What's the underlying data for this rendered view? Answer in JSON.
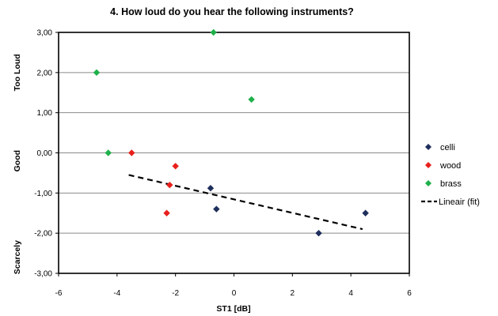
{
  "chart_data": {
    "type": "scatter",
    "title": "4. How loud do you hear the following instruments?",
    "xlabel": "ST1 [dB]",
    "ylabel_bands": [
      "Too  Loud",
      "Good",
      "Scarcely"
    ],
    "xlim": [
      -6,
      6
    ],
    "ylim": [
      -3,
      3
    ],
    "xticks": [
      "-6",
      "-4",
      "-2",
      "0",
      "2",
      "4",
      "6"
    ],
    "yticks": [
      "3,00",
      "2,00",
      "1,00",
      "0,00",
      "-1,00",
      "-2,00",
      "-3,00"
    ],
    "grid": "horizontal",
    "legend_position": "right",
    "series": [
      {
        "name": "celli",
        "color": "#1f2f5c",
        "marker": "diamond",
        "points": [
          [
            -0.8,
            -0.88
          ],
          [
            -0.6,
            -1.4
          ],
          [
            2.9,
            -2.0
          ],
          [
            4.5,
            -1.5
          ]
        ]
      },
      {
        "name": "wood",
        "color": "#e8201c",
        "marker": "diamond",
        "points": [
          [
            -3.5,
            0.0
          ],
          [
            -2.0,
            -0.33
          ],
          [
            -2.2,
            -0.8
          ],
          [
            -2.3,
            -1.5
          ]
        ]
      },
      {
        "name": "brass",
        "color": "#1fb04a",
        "marker": "diamond",
        "points": [
          [
            -4.7,
            2.0
          ],
          [
            -4.3,
            0.0
          ],
          [
            -0.7,
            3.0
          ],
          [
            0.6,
            1.33
          ]
        ]
      }
    ],
    "fit": {
      "name": "Lineair (fit)",
      "color": "#000000",
      "style": "dashed",
      "points": [
        [
          -3.6,
          -0.55
        ],
        [
          4.4,
          -1.9
        ]
      ]
    }
  }
}
